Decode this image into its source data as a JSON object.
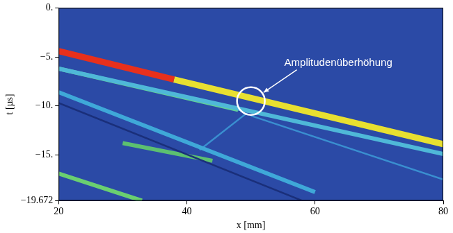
{
  "chart_data": {
    "type": "line",
    "x_label": "x [mm]",
    "y_label": "t [µs]",
    "xlim": [
      20,
      80
    ],
    "ylim": [
      -19.672,
      0
    ],
    "xticks": [
      20,
      40,
      60,
      80
    ],
    "yticks": [
      {
        "value": 0,
        "label": "0."
      },
      {
        "value": -5,
        "label": "−5."
      },
      {
        "value": -10,
        "label": "−10."
      },
      {
        "value": -15,
        "label": "−15."
      },
      {
        "value": -19.672,
        "label": "−19.672"
      }
    ],
    "grid": false,
    "series": [
      {
        "color": "#4fb8d8",
        "line_style": "medium",
        "x": [
          20,
          80
        ],
        "values": [
          -6.2,
          -14.9
        ]
      },
      {
        "color": "#5fcf9a",
        "line_style": "medium",
        "x": [
          20,
          48
        ],
        "values": [
          -6.2,
          -10.4
        ]
      },
      {
        "color": "#3fa8d8",
        "line_style": "medium",
        "x": [
          20,
          60
        ],
        "values": [
          -8.6,
          -18.8
        ]
      },
      {
        "color": "#1a2f7a",
        "line_style": "thin",
        "x": [
          20,
          58
        ],
        "values": [
          -9.7,
          -19.672
        ]
      },
      {
        "color": "#5cc070",
        "line_style": "medium",
        "x": [
          30,
          44
        ],
        "values": [
          -13.8,
          -15.6
        ]
      },
      {
        "color": "#3a8fd0",
        "line_style": "thin",
        "x": [
          42,
          50
        ],
        "values": [
          -14.5,
          -10.4
        ]
      },
      {
        "color": "#3a8fd0",
        "line_style": "thin",
        "x": [
          50,
          80
        ],
        "values": [
          -11.0,
          -17.5
        ]
      },
      {
        "color": "#6ad070",
        "line_style": "medium",
        "x": [
          20,
          33
        ],
        "values": [
          -16.9,
          -19.672
        ]
      },
      {
        "color": "#e8301c",
        "line_style": "wide",
        "x": [
          20,
          38
        ],
        "values": [
          -4.4,
          -7.3
        ]
      },
      {
        "color": "#e8e030",
        "line_style": "wide",
        "x": [
          38,
          80
        ],
        "values": [
          -7.3,
          -13.9
        ]
      }
    ],
    "annotations": [
      {
        "text": "Amplitudenüberhöhung",
        "x": 50,
        "y": -9.5
      }
    ]
  }
}
